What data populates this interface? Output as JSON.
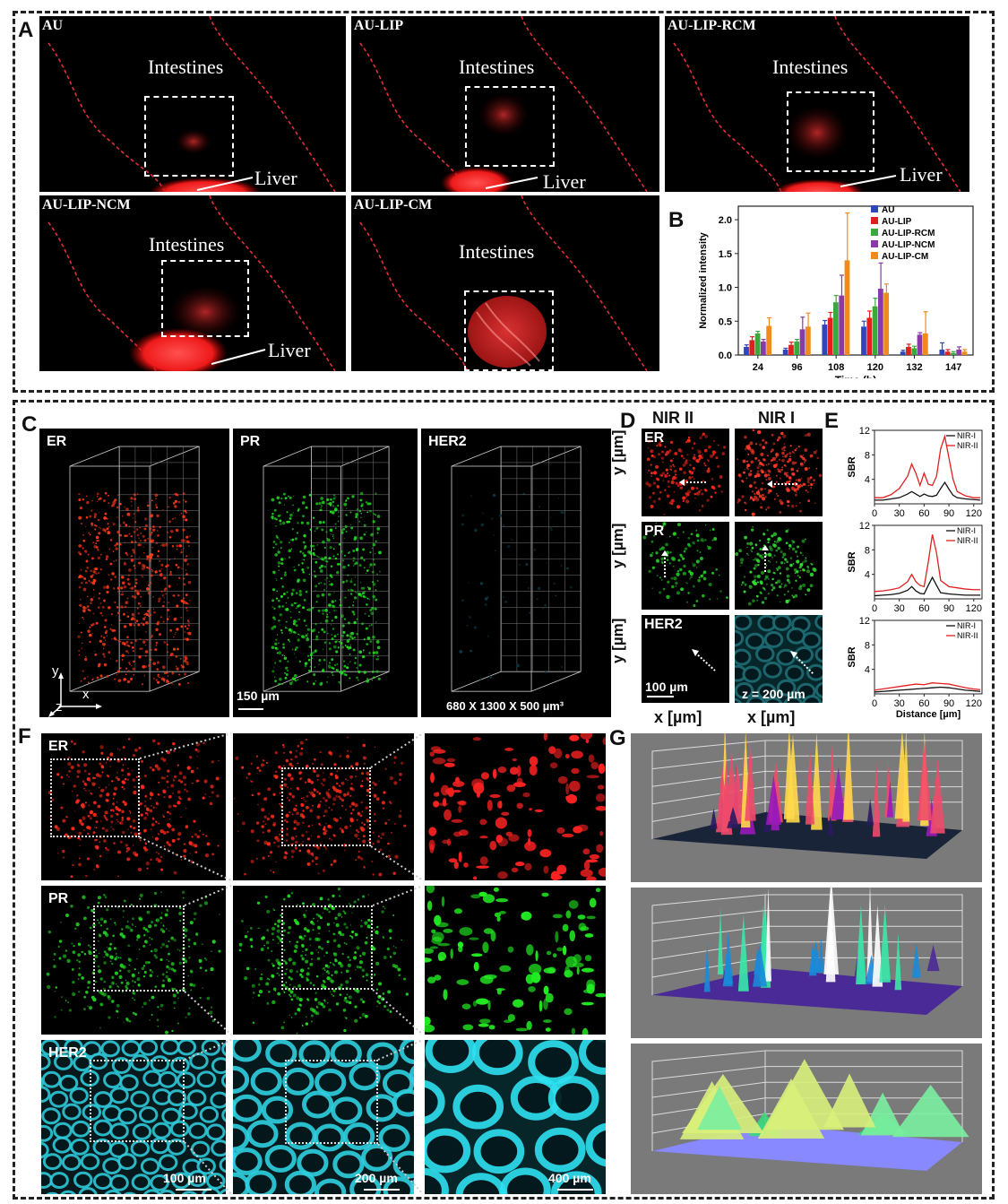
{
  "panel_labels": {
    "A": "A",
    "B": "B",
    "C": "C",
    "D": "D",
    "E": "E",
    "F": "F",
    "G": "G"
  },
  "panel_a": {
    "images": [
      {
        "title": "AU",
        "intestines": "Intestines",
        "liver": "Liver"
      },
      {
        "title": "AU-LIP",
        "intestines": "Intestines",
        "liver": "Liver"
      },
      {
        "title": "AU-LIP-RCM",
        "intestines": "Intestines",
        "liver": "Liver"
      },
      {
        "title": "AU-LIP-NCM",
        "intestines": "Intestines",
        "liver": "Liver"
      },
      {
        "title": "AU-LIP-CM",
        "intestines": "Intestines"
      }
    ]
  },
  "panel_c": {
    "titles": [
      "ER",
      "PR",
      "HER2"
    ],
    "scale": "150 µm",
    "volume": "680 X 1300 X 500 µm³",
    "axes": {
      "x": "x",
      "y": "y",
      "z": "z"
    }
  },
  "panel_d": {
    "col_headers": [
      "NIR II",
      "NIR I"
    ],
    "rows": [
      "ER",
      "PR",
      "HER2"
    ],
    "y_label": "y [µm]",
    "x_label": "x [µm]",
    "scale": "100 µm",
    "depth": "z = 200 µm"
  },
  "panel_f": {
    "rows": [
      "ER",
      "PR",
      "HER2"
    ],
    "scales": [
      "100 µm",
      "200 µm",
      "400 µm"
    ]
  },
  "colors": {
    "AU": "#2f46b8",
    "AU-LIP": "#e02020",
    "AU-LIP-RCM": "#3aa83a",
    "AU-LIP-NCM": "#8a3aa8",
    "AU-LIP-CM": "#f08a1c",
    "NIR-I": "#111111",
    "NIR-II": "#e02020",
    "ER": "#ff2a1a",
    "PR": "#22dd22",
    "HER2": "#22d8e8"
  },
  "chart_data": [
    {
      "type": "bar",
      "categories": [
        "24",
        "96",
        "108",
        "120",
        "132",
        "147"
      ],
      "xlabel": "Time (h)",
      "ylabel": "Normalized intensity",
      "ylim": [
        0,
        2.2
      ],
      "yticks": [
        "0.0",
        "0.5",
        "1.0",
        "1.5",
        "2.0"
      ],
      "legend": "top-right",
      "series": [
        {
          "name": "AU",
          "values": [
            0.12,
            0.08,
            0.45,
            0.42,
            0.05,
            0.08
          ],
          "err": [
            0.03,
            0.02,
            0.06,
            0.08,
            0.02,
            0.1
          ]
        },
        {
          "name": "AU-LIP",
          "values": [
            0.22,
            0.15,
            0.55,
            0.55,
            0.12,
            0.05
          ],
          "err": [
            0.05,
            0.04,
            0.08,
            0.1,
            0.04,
            0.03
          ]
        },
        {
          "name": "AU-LIP-RCM",
          "values": [
            0.32,
            0.2,
            0.78,
            0.72,
            0.1,
            0.03
          ],
          "err": [
            0.03,
            0.03,
            0.1,
            0.12,
            0.03,
            0.02
          ]
        },
        {
          "name": "AU-LIP-NCM",
          "values": [
            0.2,
            0.38,
            0.88,
            0.98,
            0.3,
            0.08
          ],
          "err": [
            0.03,
            0.18,
            0.3,
            0.38,
            0.03,
            0.04
          ]
        },
        {
          "name": "AU-LIP-CM",
          "values": [
            0.43,
            0.42,
            1.4,
            0.92,
            0.32,
            0.05
          ],
          "err": [
            0.12,
            0.2,
            0.7,
            0.13,
            0.32,
            0.03
          ]
        }
      ]
    },
    {
      "type": "line",
      "xlabel": "",
      "ylabel": "SBR",
      "xlim": [
        0,
        130
      ],
      "ylim": [
        0,
        12
      ],
      "xticks": [
        "0",
        "30",
        "60",
        "90",
        "120"
      ],
      "yticks": [
        "4",
        "8",
        "12"
      ],
      "legend": "top-right",
      "series": [
        {
          "name": "NIR-I",
          "x": [
            0,
            10,
            20,
            30,
            40,
            45,
            50,
            55,
            60,
            65,
            70,
            75,
            80,
            85,
            90,
            95,
            100,
            110,
            120,
            128
          ],
          "y": [
            0.6,
            0.6,
            0.8,
            1.0,
            1.6,
            2.0,
            1.6,
            1.2,
            1.6,
            1.3,
            1.2,
            1.4,
            2.5,
            3.5,
            2.4,
            1.4,
            1.0,
            0.8,
            0.7,
            0.6
          ]
        },
        {
          "name": "NIR-II",
          "x": [
            0,
            10,
            20,
            30,
            40,
            45,
            50,
            55,
            60,
            65,
            70,
            75,
            80,
            85,
            90,
            95,
            100,
            110,
            120,
            128
          ],
          "y": [
            1.0,
            1.0,
            1.5,
            2.5,
            4.5,
            6.5,
            5.0,
            3.0,
            5.0,
            3.2,
            3.0,
            4.5,
            9.0,
            11.0,
            7.5,
            4.0,
            2.0,
            1.3,
            1.0,
            1.0
          ]
        }
      ]
    },
    {
      "type": "line",
      "ylabel": "SBR",
      "xlim": [
        0,
        130
      ],
      "ylim": [
        0,
        12
      ],
      "xticks": [
        "0",
        "30",
        "60",
        "90",
        "120"
      ],
      "yticks": [
        "4",
        "8",
        "12"
      ],
      "legend": "top-right",
      "series": [
        {
          "name": "NIR-I",
          "x": [
            0,
            10,
            20,
            30,
            40,
            45,
            50,
            55,
            60,
            65,
            70,
            75,
            80,
            90,
            100,
            110,
            120,
            128
          ],
          "y": [
            0.5,
            0.6,
            0.7,
            0.9,
            1.4,
            2.0,
            1.3,
            0.9,
            0.8,
            2.2,
            3.5,
            2.2,
            1.0,
            0.8,
            0.7,
            0.6,
            0.6,
            0.6
          ]
        },
        {
          "name": "NIR-II",
          "x": [
            0,
            10,
            20,
            30,
            40,
            45,
            50,
            55,
            60,
            65,
            70,
            75,
            80,
            90,
            100,
            110,
            120,
            128
          ],
          "y": [
            1.2,
            1.3,
            1.5,
            1.8,
            2.8,
            4.0,
            2.8,
            2.2,
            2.0,
            6.0,
            10.5,
            7.5,
            3.0,
            2.0,
            1.8,
            1.6,
            1.5,
            1.5
          ]
        }
      ]
    },
    {
      "type": "line",
      "xlabel": "Distance [µm]",
      "ylabel": "SBR",
      "xlim": [
        0,
        130
      ],
      "ylim": [
        0,
        12
      ],
      "xticks": [
        "0",
        "30",
        "60",
        "90",
        "120"
      ],
      "yticks": [
        "4",
        "8",
        "12"
      ],
      "legend": "top-right",
      "series": [
        {
          "name": "NIR-I",
          "x": [
            0,
            10,
            20,
            30,
            40,
            50,
            60,
            70,
            80,
            90,
            100,
            110,
            120,
            128
          ],
          "y": [
            0.3,
            0.4,
            0.5,
            0.6,
            0.7,
            0.8,
            0.9,
            1.0,
            1.1,
            1.0,
            0.8,
            0.6,
            0.5,
            0.4
          ]
        },
        {
          "name": "NIR-II",
          "x": [
            0,
            10,
            20,
            30,
            40,
            50,
            60,
            70,
            80,
            90,
            100,
            110,
            120,
            128
          ],
          "y": [
            0.6,
            0.8,
            1.0,
            1.2,
            1.4,
            1.6,
            1.5,
            1.8,
            1.7,
            1.6,
            1.3,
            1.0,
            0.8,
            0.7
          ]
        }
      ]
    }
  ]
}
